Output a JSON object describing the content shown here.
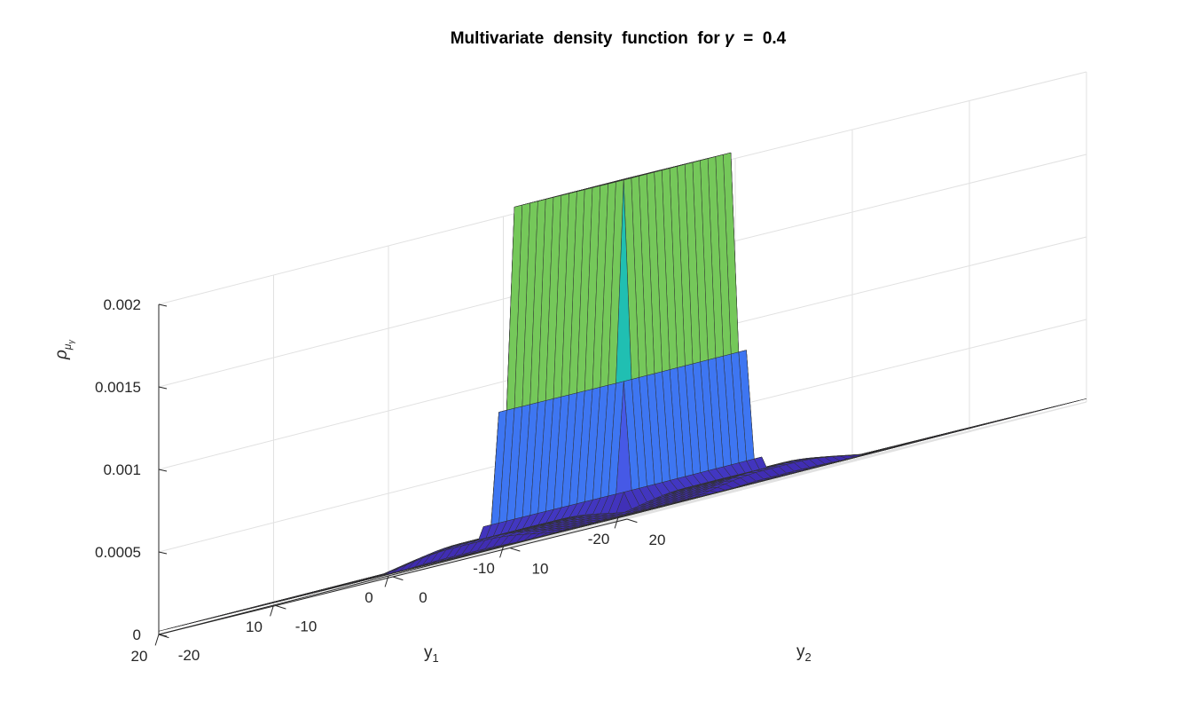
{
  "chart_data": {
    "type": "surface",
    "title_prefix": "Multivariate  density  function  for ",
    "title_symbol": "γ",
    "title_suffix": "  =  0.4",
    "xlabel_base": "y",
    "xlabel_sub": "1",
    "ylabel_base": "y",
    "ylabel_sub": "2",
    "zlabel_base": "ρ",
    "zlabel_sub": "μ",
    "zlabel_subsub": "γ",
    "gamma": 0.4,
    "xlim": [
      -20,
      20
    ],
    "ylim": [
      -20,
      20
    ],
    "zlim": [
      0,
      0.002
    ],
    "x_ticks": [
      "-20",
      "-10",
      "0",
      "10",
      "20"
    ],
    "x_tick_values": [
      -20,
      -10,
      0,
      10,
      20
    ],
    "y_ticks": [
      "-20",
      "-10",
      "0",
      "10",
      "20"
    ],
    "y_tick_values": [
      -20,
      -10,
      0,
      10,
      20
    ],
    "z_ticks": [
      "0",
      "0.0005",
      "0.001",
      "0.0015",
      "0.002"
    ],
    "z_tick_values": [
      0,
      0.0005,
      0.001,
      0.0015,
      0.002
    ],
    "plateau_level": 0.00205,
    "plateau_halfwidth": 5,
    "base_level": 2e-05,
    "arm_level": 9e-05,
    "arm_extent": 13,
    "grid": "on",
    "colormap": "parula",
    "colors": {
      "low": "#3e26a8",
      "mid_low": "#2f6ff0",
      "mid": "#17b3c0",
      "mid_high": "#a8c72b",
      "peak": "#fbbc3f",
      "top": "#f9fb15"
    }
  }
}
